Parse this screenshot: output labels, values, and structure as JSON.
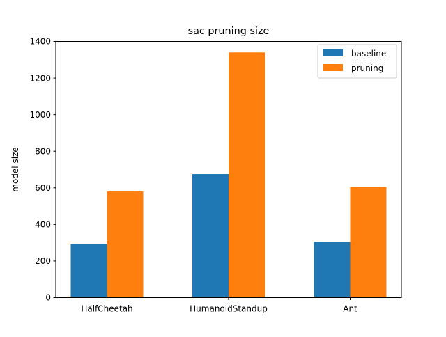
{
  "chart_data": {
    "type": "bar",
    "title": "sac pruning size",
    "xlabel": "",
    "ylabel": "model size",
    "categories": [
      "HalfCheetah",
      "HumanoidStandup",
      "Ant"
    ],
    "series": [
      {
        "name": "baseline",
        "values": [
          295,
          675,
          305
        ],
        "color": "#1f77b4"
      },
      {
        "name": "pruning",
        "values": [
          580,
          1340,
          605
        ],
        "color": "#ff7f0e"
      }
    ],
    "ylim": [
      0,
      1400
    ],
    "yticks": [
      "0",
      "200",
      "400",
      "600",
      "800",
      "1000",
      "1200",
      "1400"
    ],
    "grid": false,
    "legend_position": "top-right"
  }
}
